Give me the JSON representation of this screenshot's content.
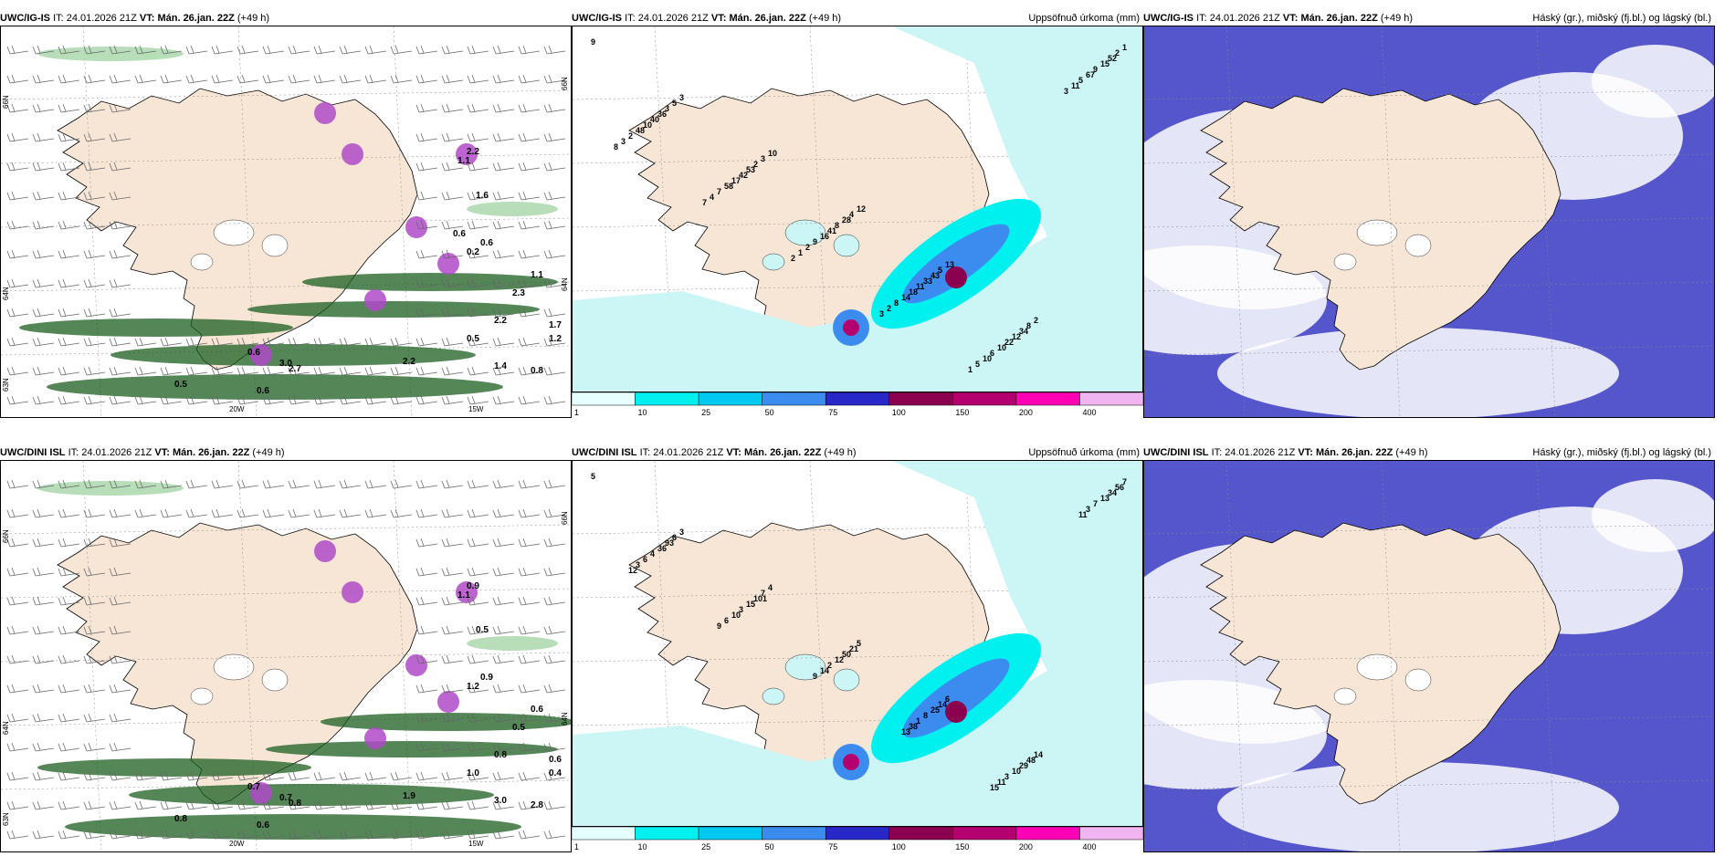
{
  "rows": [
    {
      "panels": [
        {
          "model": "UWC/IG-IS",
          "it_label": "IT:",
          "it": "24.01.2026 21Z",
          "vt_label": "VT:",
          "vt": "Mán. 26.jan. 22Z",
          "lead": "(+49 h)",
          "right_title": ""
        },
        {
          "model": "UWC/IG-IS",
          "it_label": "IT:",
          "it": "24.01.2026 21Z",
          "vt_label": "VT:",
          "vt": "Mán. 26.jan. 22Z",
          "lead": "(+49 h)",
          "right_title": "Uppsöfnuð úrkoma (mm)"
        },
        {
          "model": "UWC/IG-IS",
          "it_label": "IT:",
          "it": "24.01.2026 21Z",
          "vt_label": "VT:",
          "vt": "Mán. 26.jan. 22Z",
          "lead": "(+49 h)",
          "right_title": "Háský (gr.), miðský (fj.bl.) og lágský (bl.)"
        }
      ]
    },
    {
      "panels": [
        {
          "model": "UWC/DINI ISL",
          "it_label": "IT:",
          "it": "24.01.2026 21Z",
          "vt_label": "VT:",
          "vt": "Mán. 26.jan. 22Z",
          "lead": "(+49 h)",
          "right_title": ""
        },
        {
          "model": "UWC/DINI ISL",
          "it_label": "IT:",
          "it": "24.01.2026 21Z",
          "vt_label": "VT:",
          "vt": "Mán. 26.jan. 22Z",
          "lead": "(+49 h)",
          "right_title": "Uppsöfnuð úrkoma (mm)"
        },
        {
          "model": "UWC/DINI ISL",
          "it_label": "IT:",
          "it": "24.01.2026 21Z",
          "vt_label": "VT:",
          "vt": "Mán. 26.jan. 22Z",
          "lead": "(+49 h)",
          "right_title": "Háský (gr.), miðský (fj.bl.) og lágský (bl.)"
        }
      ]
    }
  ],
  "axes": {
    "lat_66": "66N",
    "lat_64": "64N",
    "lat_63": "63N",
    "lon_20": "20W",
    "lon_15": "15W"
  },
  "colorbar": {
    "ticks": [
      "1",
      "10",
      "25",
      "50",
      "75",
      "100",
      "150",
      "200",
      "400"
    ],
    "colors": [
      "#e6ffff",
      "#00f0f0",
      "#00c8f0",
      "#3c8cf0",
      "#2828c8",
      "#8c0050",
      "#b4006e",
      "#ff00b4",
      "#f0b4f0"
    ]
  },
  "labels": {
    "row0_wind": [
      "2.3",
      "1.1",
      "2.2",
      "1.7",
      "0.5",
      "1.2",
      "1.4",
      "0.8",
      "2.2",
      "2.7",
      "3.0",
      "0.5",
      "0.6",
      "1.6",
      "2.2",
      "1.1",
      "0.6",
      "0.6",
      "0.2",
      "0.6"
    ],
    "row1_wind": [
      "0.5",
      "0.6",
      "1.9",
      "0.6",
      "1.0",
      "0.4",
      "3.0",
      "2.8",
      "0.8",
      "0.8",
      "0.7",
      "0.8",
      "0.6",
      "0.5",
      "0.9",
      "1.1",
      "0.7",
      "0.9",
      "1.2"
    ],
    "row0_precip": [
      "9",
      "3",
      "10",
      "12",
      "13",
      "2",
      "1",
      "5",
      "3",
      "4",
      "5",
      "8",
      "2",
      "3",
      "2",
      "28",
      "43",
      "34",
      "52",
      "36",
      "53",
      "8",
      "33",
      "12",
      "15",
      "40",
      "42",
      "41",
      "11",
      "22",
      "9",
      "10",
      "17",
      "16",
      "18",
      "10",
      "67",
      "48",
      "58",
      "9",
      "14",
      "6",
      "5",
      "2",
      "7",
      "2",
      "8",
      "10",
      "11",
      "3",
      "4",
      "1",
      "2",
      "5",
      "3",
      "8",
      "7",
      "2",
      "3",
      "1"
    ],
    "row1_precip": [
      "5",
      "3",
      "4",
      "5",
      "6",
      "14",
      "7",
      "6",
      "7",
      "21",
      "14",
      "48",
      "56",
      "93",
      "101",
      "50",
      "25",
      "29",
      "34",
      "36",
      "15",
      "12",
      "8",
      "10",
      "13",
      "4",
      "3",
      "2",
      "1",
      "3",
      "7",
      "6",
      "10",
      "14",
      "38",
      "11",
      "3",
      "3",
      "6",
      "9",
      "13",
      "15",
      "11",
      "12",
      "9"
    ]
  }
}
